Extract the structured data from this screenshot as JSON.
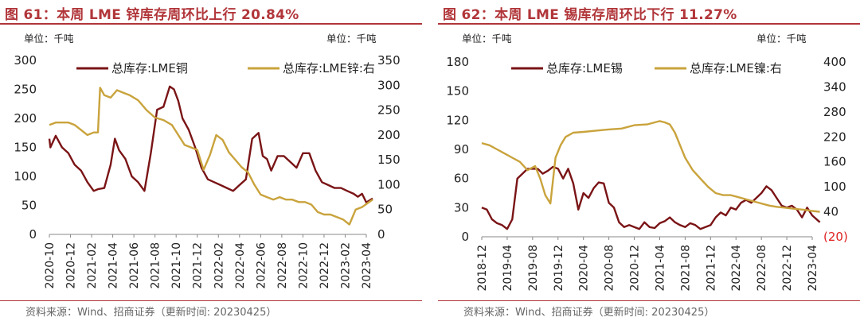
{
  "left": {
    "title": "图 61：本周 LME 锌库存周环比上行 20.84%",
    "unit_left": "单位：千吨",
    "unit_right": "单位：千吨",
    "source": "资料来源：Wind、招商证券（更新时间: 20230425）"
  },
  "right": {
    "title": "图 62：本周 LME 锡库存周环比下行 11.27%",
    "unit_left": "单位：千吨",
    "unit_right": "单位：千吨",
    "source": "资料来源：Wind、招商证券（更新时间: 20230425）"
  },
  "colors": {
    "primary": "#7a1416",
    "secondary": "#c9a33c",
    "title": "#b1363a",
    "negative": "#e02020"
  },
  "chart_data": [
    {
      "type": "line",
      "title": "本周 LME 锌库存周环比上行 20.84%",
      "x_ticks": [
        "2020-10",
        "2020-12",
        "2021-02",
        "2021-04",
        "2021-06",
        "2021-08",
        "2021-10",
        "2021-12",
        "2022-02",
        "2022-04",
        "2022-06",
        "2022-08",
        "2022-10",
        "2022-12",
        "2023-02",
        "2023-04"
      ],
      "y_left": {
        "min": 0,
        "max": 300,
        "ticks": [
          "0",
          "50",
          "100",
          "150",
          "200",
          "250",
          "300"
        ]
      },
      "y_right": {
        "min": 0,
        "max": 350,
        "ticks": [
          "0",
          "50",
          "100",
          "150",
          "200",
          "250",
          "300",
          "350"
        ]
      },
      "series": [
        {
          "name": "总库存:LME铜",
          "axis": "left",
          "x": [
            0,
            0.05,
            0.3,
            0.6,
            0.9,
            1.2,
            1.5,
            1.8,
            2.1,
            2.3,
            2.6,
            2.9,
            3.1,
            3.3,
            3.6,
            3.9,
            4.2,
            4.5,
            4.8,
            5.1,
            5.4,
            5.7,
            5.9,
            6.1,
            6.3,
            6.6,
            6.9,
            7.2,
            7.5,
            7.8,
            8.1,
            8.4,
            8.7,
            9.0,
            9.3,
            9.6,
            9.9,
            10.1,
            10.3,
            10.5,
            10.8,
            11.1,
            11.4,
            11.7,
            12.0,
            12.3,
            12.6,
            12.9,
            13.2,
            13.5,
            13.8,
            14.1,
            14.4,
            14.6,
            14.8,
            15.0,
            15.3
          ],
          "values": [
            165,
            150,
            170,
            150,
            140,
            120,
            110,
            90,
            75,
            78,
            80,
            120,
            165,
            145,
            130,
            100,
            90,
            75,
            140,
            215,
            220,
            255,
            250,
            230,
            200,
            180,
            150,
            115,
            95,
            90,
            85,
            80,
            75,
            85,
            95,
            165,
            175,
            135,
            130,
            110,
            135,
            135,
            125,
            115,
            140,
            140,
            110,
            90,
            85,
            80,
            80,
            75,
            70,
            65,
            70,
            55,
            62
          ]
        },
        {
          "name": "总库存:LME锌:右",
          "axis": "right",
          "x": [
            0,
            0.3,
            0.6,
            0.9,
            1.2,
            1.5,
            1.8,
            2.1,
            2.3,
            2.4,
            2.6,
            2.9,
            3.2,
            3.5,
            3.8,
            4.2,
            4.6,
            5.0,
            5.4,
            5.8,
            6.1,
            6.4,
            6.7,
            7.0,
            7.3,
            7.6,
            7.9,
            8.2,
            8.5,
            8.8,
            9.1,
            9.4,
            9.7,
            10.0,
            10.3,
            10.6,
            10.9,
            11.2,
            11.5,
            11.8,
            12.1,
            12.4,
            12.7,
            13.0,
            13.3,
            13.6,
            13.9,
            14.2,
            14.5,
            14.8,
            15.3
          ],
          "values": [
            220,
            225,
            225,
            225,
            220,
            210,
            200,
            205,
            205,
            295,
            280,
            275,
            290,
            285,
            280,
            270,
            250,
            235,
            230,
            220,
            200,
            180,
            175,
            170,
            130,
            160,
            200,
            190,
            165,
            150,
            135,
            125,
            100,
            80,
            75,
            70,
            75,
            70,
            70,
            65,
            65,
            60,
            45,
            40,
            40,
            35,
            30,
            20,
            50,
            55,
            70
          ]
        }
      ]
    },
    {
      "type": "line",
      "title": "本周 LME 锡库存周环比下行 11.27%",
      "x_ticks": [
        "2018-12",
        "2019-04",
        "2019-08",
        "2019-12",
        "2020-04",
        "2020-08",
        "2020-12",
        "2021-04",
        "2021-08",
        "2021-12",
        "2022-04",
        "2022-08",
        "2022-12",
        "2023-04"
      ],
      "y_left": {
        "min": 0,
        "max": 180,
        "ticks": [
          "0",
          "30",
          "60",
          "90",
          "120",
          "150",
          "180"
        ]
      },
      "y_right": {
        "min": -20,
        "max": 400,
        "ticks": [
          "(20)",
          "40",
          "100",
          "160",
          "220",
          "280",
          "340",
          "400"
        ]
      },
      "series": [
        {
          "name": "总库存:LME锡",
          "axis": "left",
          "x": [
            0,
            0.2,
            0.4,
            0.6,
            0.8,
            1.0,
            1.2,
            1.4,
            1.6,
            1.8,
            2.0,
            2.2,
            2.4,
            2.6,
            2.8,
            3.0,
            3.2,
            3.4,
            3.6,
            3.8,
            4.0,
            4.2,
            4.4,
            4.6,
            4.8,
            5.0,
            5.2,
            5.4,
            5.6,
            5.8,
            6.0,
            6.2,
            6.4,
            6.6,
            6.8,
            7.0,
            7.2,
            7.4,
            7.6,
            7.8,
            8.0,
            8.2,
            8.4,
            8.6,
            8.8,
            9.0,
            9.2,
            9.4,
            9.6,
            9.8,
            10.0,
            10.2,
            10.4,
            10.6,
            10.8,
            11.0,
            11.2,
            11.4,
            11.6,
            11.8,
            12.0,
            12.2,
            12.4,
            12.6,
            12.8,
            13.0,
            13.3
          ],
          "values": [
            30,
            28,
            18,
            14,
            12,
            8,
            18,
            60,
            65,
            70,
            70,
            70,
            65,
            68,
            72,
            70,
            60,
            70,
            55,
            28,
            45,
            40,
            50,
            56,
            55,
            35,
            30,
            15,
            10,
            12,
            10,
            8,
            15,
            10,
            9,
            14,
            16,
            20,
            15,
            12,
            10,
            14,
            12,
            8,
            10,
            12,
            20,
            25,
            22,
            30,
            28,
            35,
            38,
            35,
            40,
            45,
            52,
            48,
            40,
            32,
            30,
            32,
            28,
            20,
            30,
            22,
            15
          ]
        },
        {
          "name": "总库存:LME镍:右",
          "axis": "right",
          "x": [
            0,
            0.3,
            0.6,
            0.9,
            1.2,
            1.5,
            1.8,
            2.1,
            2.3,
            2.5,
            2.7,
            2.9,
            3.1,
            3.3,
            3.6,
            4.0,
            4.5,
            5.0,
            5.5,
            6.0,
            6.5,
            7.0,
            7.2,
            7.4,
            7.6,
            7.8,
            8.0,
            8.3,
            8.6,
            8.9,
            9.2,
            9.5,
            9.8,
            10.1,
            10.4,
            10.7,
            11.0,
            11.3,
            11.6,
            11.9,
            12.2,
            12.5,
            12.8,
            13.0,
            13.3
          ],
          "values": [
            205,
            200,
            190,
            180,
            170,
            160,
            140,
            150,
            120,
            80,
            60,
            170,
            200,
            220,
            230,
            232,
            235,
            238,
            240,
            248,
            250,
            258,
            255,
            250,
            230,
            200,
            170,
            140,
            120,
            100,
            85,
            80,
            80,
            75,
            70,
            65,
            60,
            55,
            52,
            50,
            48,
            46,
            44,
            42,
            40
          ]
        }
      ]
    }
  ]
}
